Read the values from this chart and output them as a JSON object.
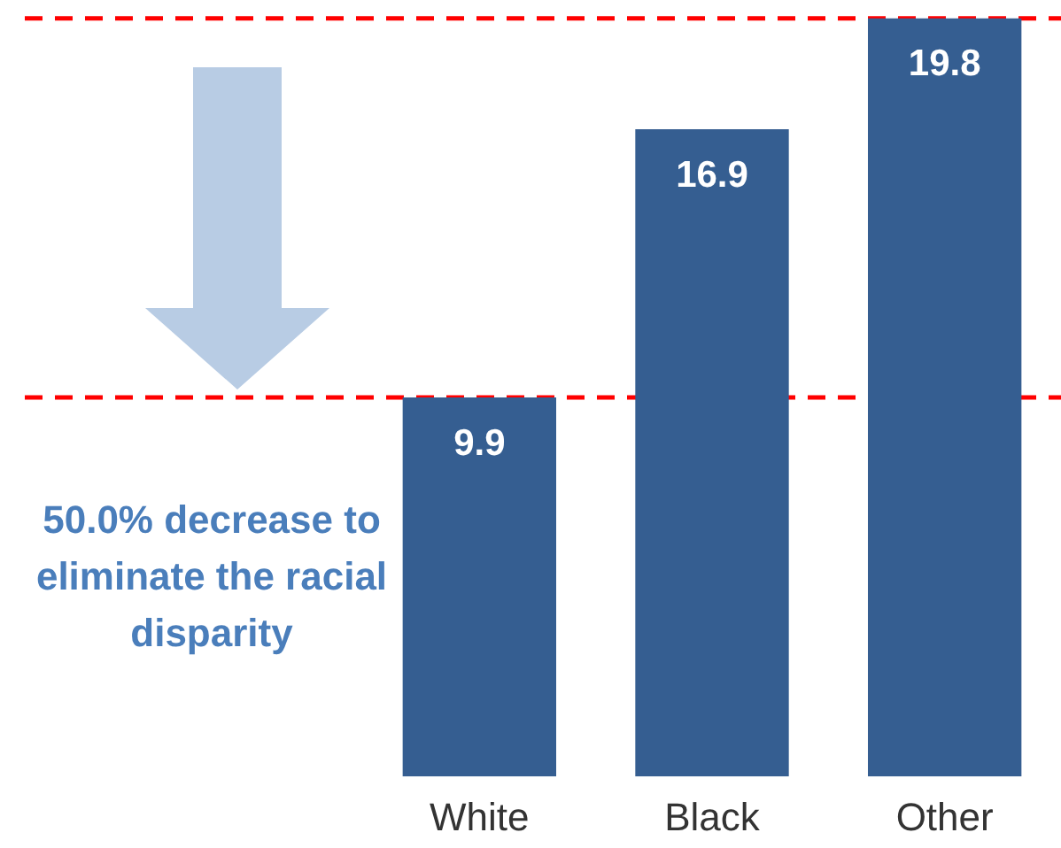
{
  "chart_data": {
    "type": "bar",
    "categories": [
      "White",
      "Black",
      "Other"
    ],
    "values": [
      9.9,
      16.9,
      19.8
    ],
    "color": "#355e91",
    "data_labels": true,
    "grid": false,
    "legend": false,
    "ref_lines": [
      {
        "axis": "y",
        "value": 9.9,
        "label": null,
        "color": "#ff0000",
        "line_style": "dashed"
      },
      {
        "axis": "y",
        "value": 19.8,
        "label": null,
        "color": "#ff0000",
        "line_style": "dashed"
      }
    ],
    "annotations": [
      "50.0% decrease to eliminate the racial disparity"
    ]
  }
}
